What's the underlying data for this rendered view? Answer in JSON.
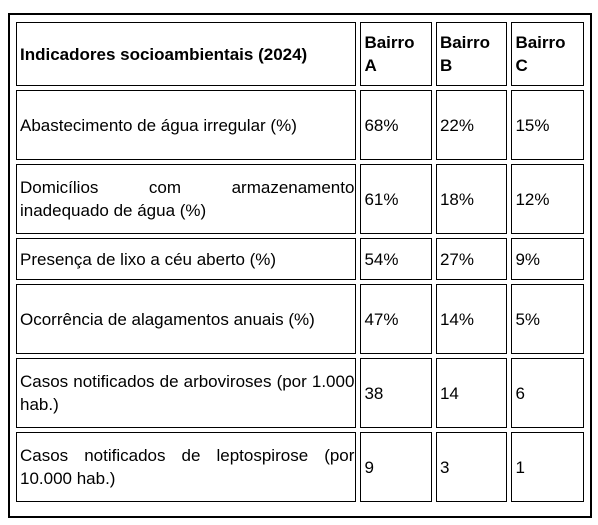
{
  "table": {
    "header": [
      "Indicadores socioambientais (2024)",
      "Bairro A",
      "Bairro B",
      "Bairro C"
    ],
    "rows": [
      {
        "label": "Abastecimento de água irregular (%)",
        "values": [
          "68%",
          "22%",
          "15%"
        ]
      },
      {
        "label": "Domicílios com armazenamento inadequado de água (%)",
        "values": [
          "61%",
          "18%",
          "12%"
        ]
      },
      {
        "label": "Presença de lixo a céu aberto (%)",
        "values": [
          "54%",
          "27%",
          "9%"
        ]
      },
      {
        "label": "Ocorrência de alagamentos anuais (%)",
        "values": [
          "47%",
          "14%",
          "5%"
        ]
      },
      {
        "label": "Casos notificados de arboviroses (por 1.000 hab.)",
        "values": [
          "38",
          "14",
          "6"
        ]
      },
      {
        "label": "Casos notificados de leptospirose (por 10.000 hab.)",
        "values": [
          "9",
          "3",
          "1"
        ]
      }
    ]
  }
}
